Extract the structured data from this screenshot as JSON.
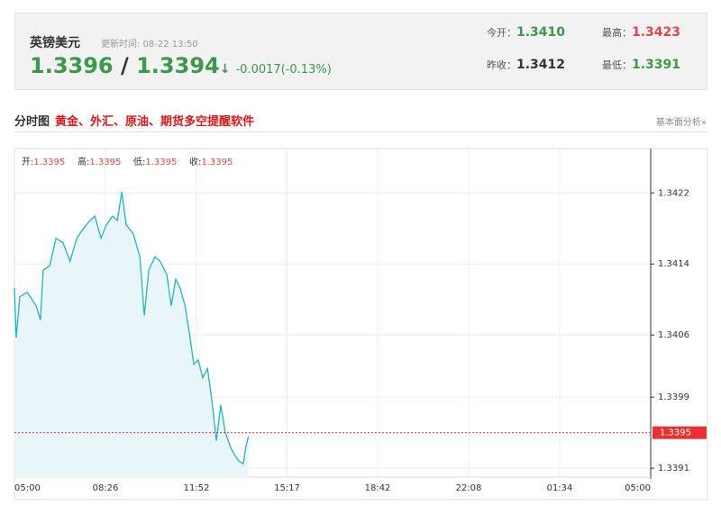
{
  "header": {
    "symbol": "英镑美元",
    "update_label": "更新时间:",
    "update_time": "08-22 13:50",
    "bid": "1.3396",
    "sep": "/",
    "ask": "1.3394",
    "arrow": "↓",
    "change": "-0.0017(-0.13%)",
    "stats": [
      {
        "label": "今开：",
        "value": "1.3410",
        "color": "#3a9a4a"
      },
      {
        "label": "最高：",
        "value": "1.3423",
        "color": "#e0474c"
      },
      {
        "label": "昨收：",
        "value": "1.3412",
        "color": "#333333"
      },
      {
        "label": "最低：",
        "value": "1.3391",
        "color": "#3a9a4a"
      }
    ]
  },
  "section": {
    "title": "分时图",
    "promo": "黄金、外汇、原油、期货多空提醒软件",
    "link": "基本面分析»"
  },
  "chart_data": {
    "type": "line",
    "info": [
      {
        "label": "开:",
        "value": "1.3395"
      },
      {
        "label": "高:",
        "value": "1.3395"
      },
      {
        "label": "低:",
        "value": "1.3395"
      },
      {
        "label": "收:",
        "value": "1.3395"
      }
    ],
    "x": [
      0,
      4,
      12,
      29,
      49,
      59,
      65,
      80,
      94,
      110,
      126,
      141,
      155,
      171,
      182,
      196,
      208,
      222,
      233,
      243,
      253,
      269,
      284,
      294,
      304,
      318,
      330,
      345,
      355,
      365,
      375,
      386,
      396,
      406,
      416,
      426,
      437,
      447,
      457,
      467,
      477,
      488,
      498,
      508,
      518,
      524,
      530
    ],
    "series": [
      {
        "name": "英镑美元",
        "color": "#1fb3c6",
        "values": [
          1.34113,
          1.34057,
          1.34103,
          1.34108,
          1.34093,
          1.34077,
          1.34133,
          1.34138,
          1.34169,
          1.34164,
          1.34143,
          1.34169,
          1.34179,
          1.34189,
          1.34194,
          1.34169,
          1.34184,
          1.34194,
          1.34189,
          1.34221,
          1.34184,
          1.34174,
          1.34148,
          1.34082,
          1.34133,
          1.34148,
          1.34143,
          1.34128,
          1.34093,
          1.34123,
          1.34113,
          1.34093,
          1.34062,
          1.34027,
          1.34032,
          1.34012,
          1.34022,
          1.33986,
          1.33941,
          1.33981,
          1.33951,
          1.33935,
          1.33925,
          1.33918,
          1.33915,
          1.33935,
          1.33946
        ]
      }
    ],
    "xlim": [
      0,
      1440
    ],
    "xticks": [
      {
        "value": 0,
        "label": "05:00"
      },
      {
        "value": 206,
        "label": "08:26"
      },
      {
        "value": 412,
        "label": "11:52"
      },
      {
        "value": 617,
        "label": "15:17"
      },
      {
        "value": 822,
        "label": "18:42"
      },
      {
        "value": 1028,
        "label": "22:08"
      },
      {
        "value": 1234,
        "label": "01:34"
      },
      {
        "value": 1440,
        "label": "05:00"
      }
    ],
    "ylim": [
      1.339,
      1.3427
    ],
    "yticks": [
      1.3391,
      1.3399,
      1.3406,
      1.3414,
      1.3422
    ],
    "grid": true,
    "current_price": 1.3395,
    "current_color": "#e8322f",
    "fill": "#e8f6fa"
  }
}
